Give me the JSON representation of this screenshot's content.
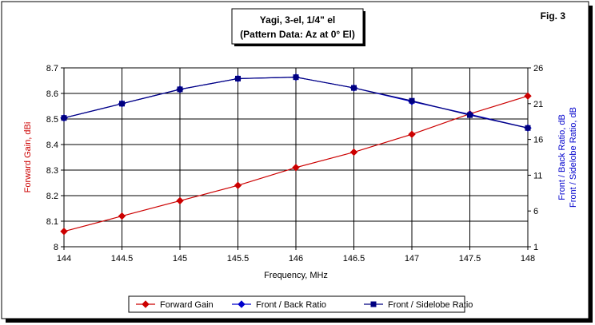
{
  "chart_data": {
    "type": "line",
    "title_lines": [
      "Yagi, 3-el, 1/4\" el",
      "(Pattern Data: Az at 0° El)"
    ],
    "fig_label": "Fig. 3",
    "xlabel": "Frequency, MHz",
    "ylabel_left": "Forward Gain, dBi",
    "ylabel_right_lines": [
      "Front / Back Ratio,  dB",
      "Front / Sidelobe Ratio,  dB"
    ],
    "x": [
      144,
      144.5,
      145,
      145.5,
      146,
      146.5,
      147,
      147.5,
      148
    ],
    "x_tick_labels": [
      "144",
      "144.5",
      "145",
      "145.5",
      "146",
      "146.5",
      "147",
      "147.5",
      "148"
    ],
    "xlim": [
      144,
      148
    ],
    "ylim_left": [
      8.0,
      8.7
    ],
    "y_left_tick_labels": [
      "8",
      "8.1",
      "8.2",
      "8.3",
      "8.4",
      "8.5",
      "8.6",
      "8.7"
    ],
    "ylim_right": [
      1,
      26
    ],
    "y_right_tick_labels": [
      "1",
      "6",
      "11",
      "16",
      "21",
      "26"
    ],
    "grid": true,
    "legend_position": "bottom",
    "series": [
      {
        "name": "Forward Gain",
        "axis": "left",
        "color": "#cc0000",
        "marker": "diamond",
        "values": [
          8.06,
          8.12,
          8.18,
          8.24,
          8.31,
          8.37,
          8.44,
          8.52,
          8.59
        ]
      },
      {
        "name": "Front / Back Ratio",
        "axis": "right",
        "color": "#0000cc",
        "marker": "diamond",
        "values": [
          19.0,
          21.0,
          23.0,
          24.5,
          24.7,
          23.2,
          21.3,
          19.5,
          17.6
        ]
      },
      {
        "name": "Front / Sidelobe Ratio",
        "axis": "right",
        "color": "#000080",
        "marker": "square",
        "values": [
          19.0,
          21.0,
          23.0,
          24.5,
          24.7,
          23.2,
          21.4,
          19.4,
          17.6
        ]
      }
    ]
  }
}
